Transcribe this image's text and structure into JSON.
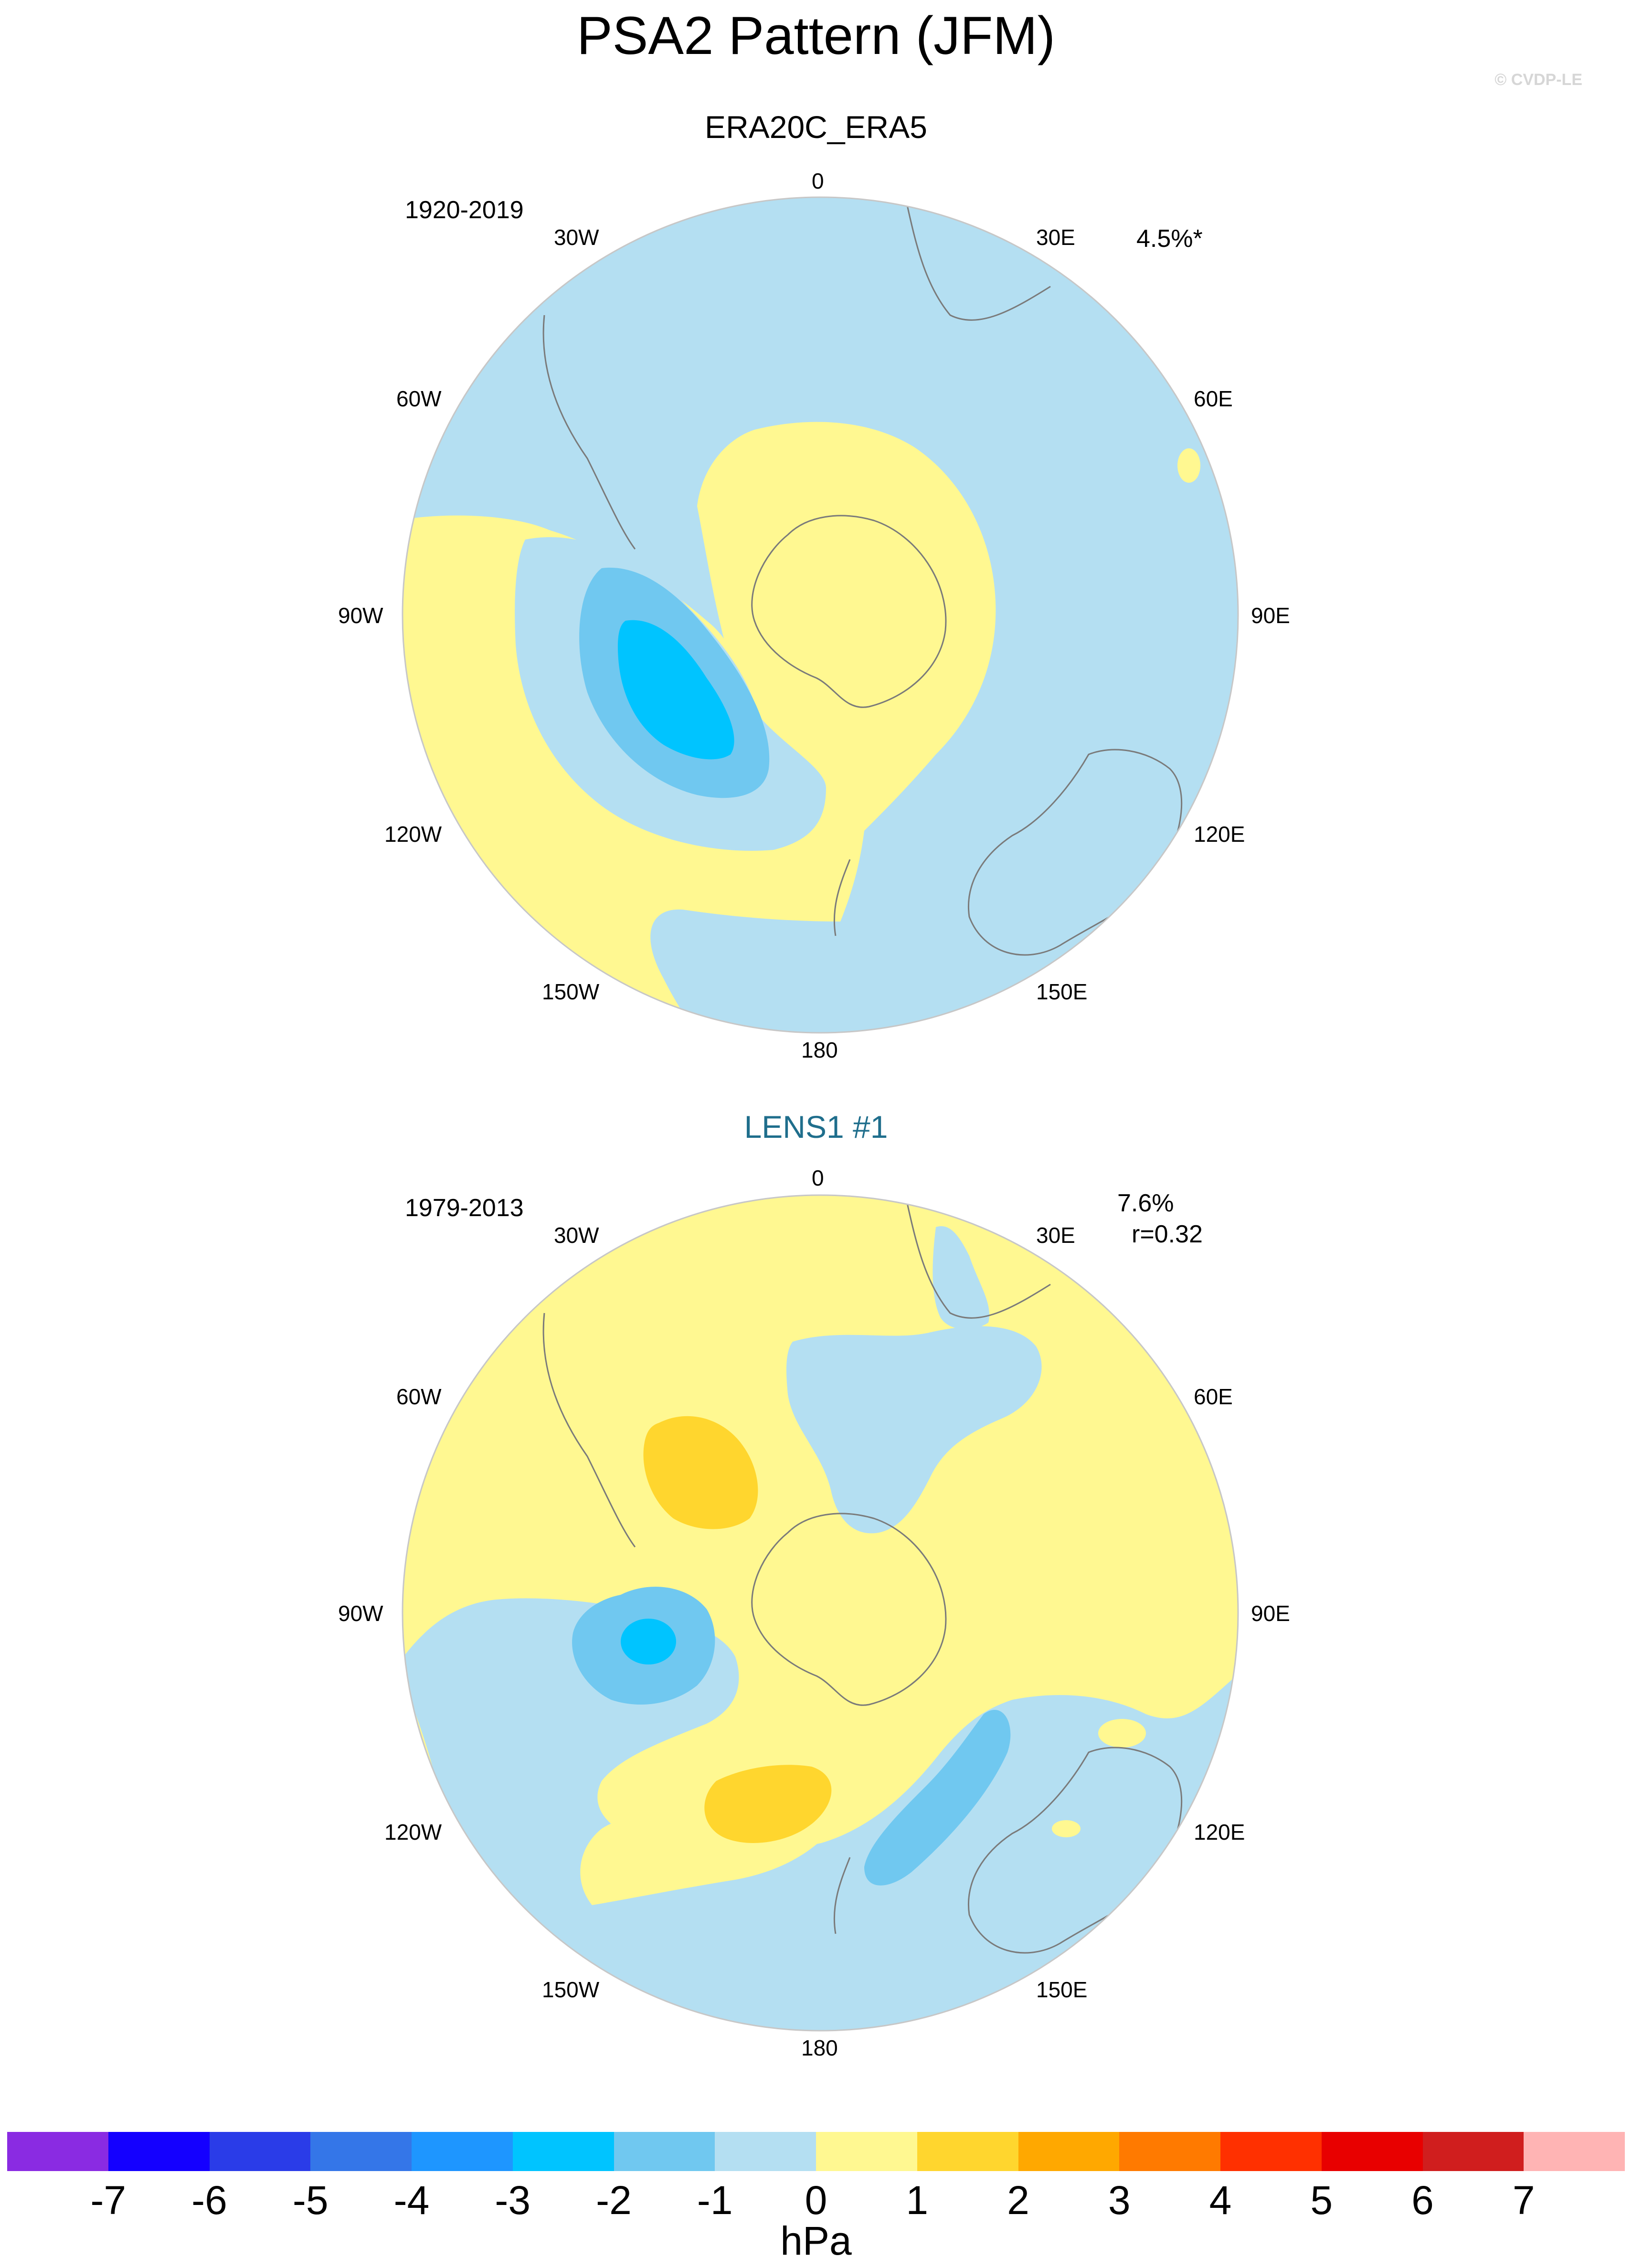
{
  "title": "PSA2 Pattern (JFM)",
  "credit": "© CVDP-LE",
  "panels": [
    {
      "title": "ERA20C_ERA5",
      "period": "1920-2019",
      "stats": [
        "4.5%*"
      ],
      "lon_labels": [
        "0",
        "30E",
        "60E",
        "90E",
        "120E",
        "150E",
        "180",
        "150W",
        "120W",
        "90W",
        "60W",
        "30W"
      ]
    },
    {
      "title": "LENS1 #1",
      "period": "1979-2013",
      "stats": [
        "7.6%",
        "r=0.32"
      ],
      "lon_labels": [
        "0",
        "30E",
        "60E",
        "90E",
        "120E",
        "150E",
        "180",
        "150W",
        "120W",
        "90W",
        "60W",
        "30W"
      ]
    }
  ],
  "colorbar": {
    "unit": "hPa",
    "ticks": [
      "-7",
      "-6",
      "-5",
      "-4",
      "-3",
      "-2",
      "-1",
      "0",
      "1",
      "2",
      "3",
      "4",
      "5",
      "6",
      "7"
    ],
    "colors": [
      "#8a2be2",
      "#1400ff",
      "#2a3ce8",
      "#3476e8",
      "#1e96ff",
      "#00c4ff",
      "#70c8f0",
      "#b4dff2",
      "#fff891",
      "#ffd62e",
      "#ffa800",
      "#ff7a00",
      "#ff3000",
      "#e80000",
      "#d01e1e",
      "#ffb4b4"
    ]
  },
  "map_fill_colors": {
    "neg1": "#b4dff2",
    "neg2": "#70c8f0",
    "neg3": "#00c4ff",
    "neg4": "#4aa8ff",
    "pos1": "#fff891",
    "pos2": "#ffd62e",
    "coast": "#7a7a7a"
  }
}
